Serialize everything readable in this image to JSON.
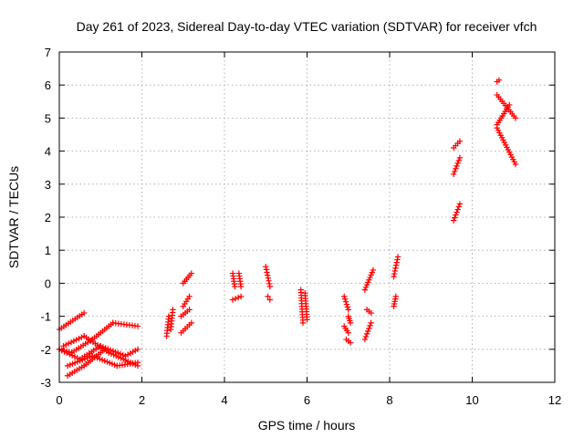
{
  "chart_data": {
    "type": "scatter",
    "title": "Day 261 of 2023, Sidereal Day-to-day VTEC variation (SDTVAR) for receiver vfch",
    "xlabel": "GPS time / hours",
    "ylabel": "SDTVAR / TECUs",
    "xlim": [
      0,
      12
    ],
    "ylim": [
      -3,
      7
    ],
    "xticks": [
      0,
      2,
      4,
      6,
      8,
      10,
      12
    ],
    "yticks": [
      -3,
      -2,
      -1,
      0,
      1,
      2,
      3,
      4,
      5,
      6,
      7
    ],
    "grid": true,
    "marker": "plus",
    "color": "#ff0000",
    "series": [
      {
        "segments": [
          {
            "x0": 0.0,
            "y0": -1.4,
            "x1": 0.6,
            "y1": -0.9
          },
          {
            "x0": 0.0,
            "y0": -2.0,
            "x1": 0.3,
            "y1": -2.1
          },
          {
            "x0": 0.3,
            "y0": -2.1,
            "x1": 0.8,
            "y1": -1.7
          },
          {
            "x0": 0.8,
            "y0": -1.7,
            "x1": 1.3,
            "y1": -1.2
          },
          {
            "x0": 1.3,
            "y0": -1.2,
            "x1": 1.9,
            "y1": -1.3
          },
          {
            "x0": 0.0,
            "y0": -2.0,
            "x1": 0.5,
            "y1": -2.3
          },
          {
            "x0": 0.5,
            "y0": -2.3,
            "x1": 1.0,
            "y1": -1.9
          },
          {
            "x0": 1.0,
            "y0": -1.9,
            "x1": 1.6,
            "y1": -2.2
          },
          {
            "x0": 1.6,
            "y0": -2.2,
            "x1": 1.9,
            "y1": -2.0
          },
          {
            "x0": 0.1,
            "y0": -1.9,
            "x1": 0.6,
            "y1": -1.6
          },
          {
            "x0": 0.6,
            "y0": -1.6,
            "x1": 1.2,
            "y1": -2.1
          },
          {
            "x0": 1.2,
            "y0": -2.1,
            "x1": 1.9,
            "y1": -2.5
          },
          {
            "x0": 0.2,
            "y0": -2.8,
            "x1": 0.6,
            "y1": -2.5
          },
          {
            "x0": 0.6,
            "y0": -2.5,
            "x1": 1.1,
            "y1": -2.0
          },
          {
            "x0": 0.2,
            "y0": -2.5,
            "x1": 0.8,
            "y1": -2.2
          },
          {
            "x0": 0.8,
            "y0": -2.2,
            "x1": 1.4,
            "y1": -2.5
          },
          {
            "x0": 1.4,
            "y0": -2.5,
            "x1": 1.9,
            "y1": -2.4
          },
          {
            "x0": 2.6,
            "y0": -1.6,
            "x1": 2.65,
            "y1": -1.0
          },
          {
            "x0": 2.7,
            "y0": -1.4,
            "x1": 2.75,
            "y1": -0.8
          },
          {
            "x0": 2.95,
            "y0": -1.5,
            "x1": 3.2,
            "y1": -1.2
          },
          {
            "x0": 2.95,
            "y0": -1.0,
            "x1": 3.15,
            "y1": -0.8
          },
          {
            "x0": 3.0,
            "y0": -0.7,
            "x1": 3.15,
            "y1": -0.4
          },
          {
            "x0": 3.0,
            "y0": 0.0,
            "x1": 3.2,
            "y1": 0.3
          },
          {
            "x0": 4.2,
            "y0": -0.5,
            "x1": 4.4,
            "y1": -0.4
          },
          {
            "x0": 4.2,
            "y0": 0.3,
            "x1": 4.25,
            "y1": -0.1
          },
          {
            "x0": 4.35,
            "y0": 0.3,
            "x1": 4.4,
            "y1": -0.1
          },
          {
            "x0": 5.0,
            "y0": 0.5,
            "x1": 5.1,
            "y1": -0.1
          },
          {
            "x0": 5.05,
            "y0": -0.4,
            "x1": 5.1,
            "y1": -0.5
          },
          {
            "x0": 5.85,
            "y0": -0.2,
            "x1": 5.9,
            "y1": -1.2
          },
          {
            "x0": 5.95,
            "y0": -0.3,
            "x1": 6.0,
            "y1": -1.1
          },
          {
            "x0": 6.9,
            "y0": -0.4,
            "x1": 7.0,
            "y1": -0.8
          },
          {
            "x0": 6.9,
            "y0": -1.3,
            "x1": 7.0,
            "y1": -1.5
          },
          {
            "x0": 6.95,
            "y0": -1.7,
            "x1": 7.05,
            "y1": -1.8
          },
          {
            "x0": 7.0,
            "y0": -1.0,
            "x1": 7.05,
            "y1": -1.2
          },
          {
            "x0": 7.4,
            "y0": -1.7,
            "x1": 7.55,
            "y1": -1.2
          },
          {
            "x0": 7.45,
            "y0": -0.8,
            "x1": 7.55,
            "y1": -0.9
          },
          {
            "x0": 7.4,
            "y0": -0.2,
            "x1": 7.6,
            "y1": 0.4
          },
          {
            "x0": 8.1,
            "y0": 0.2,
            "x1": 8.2,
            "y1": 0.8
          },
          {
            "x0": 8.1,
            "y0": -0.7,
            "x1": 8.15,
            "y1": -0.4
          },
          {
            "x0": 9.55,
            "y0": 1.9,
            "x1": 9.7,
            "y1": 2.4
          },
          {
            "x0": 9.55,
            "y0": 3.3,
            "x1": 9.7,
            "y1": 3.8
          },
          {
            "x0": 9.55,
            "y0": 4.1,
            "x1": 9.7,
            "y1": 4.3
          },
          {
            "x0": 10.6,
            "y0": 4.7,
            "x1": 11.05,
            "y1": 3.6
          },
          {
            "x0": 10.6,
            "y0": 5.7,
            "x1": 11.05,
            "y1": 5.0
          },
          {
            "x0": 10.6,
            "y0": 4.8,
            "x1": 10.9,
            "y1": 5.4
          },
          {
            "x0": 10.6,
            "y0": 6.1,
            "x1": 10.65,
            "y1": 6.15
          }
        ]
      }
    ]
  }
}
